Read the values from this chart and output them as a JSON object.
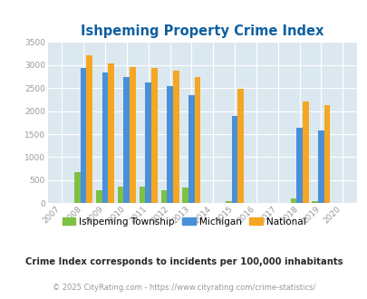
{
  "title": "Ishpeming Property Crime Index",
  "title_color": "#1060a0",
  "years": [
    2007,
    2008,
    2009,
    2010,
    2011,
    2012,
    2013,
    2014,
    2015,
    2016,
    2017,
    2018,
    2019,
    2020
  ],
  "township": [
    0,
    670,
    290,
    370,
    355,
    290,
    335,
    0,
    55,
    0,
    0,
    100,
    55,
    0
  ],
  "michigan": [
    0,
    2930,
    2840,
    2730,
    2620,
    2540,
    2350,
    0,
    1900,
    0,
    0,
    1640,
    1570,
    0
  ],
  "national": [
    0,
    3200,
    3040,
    2960,
    2930,
    2870,
    2730,
    0,
    2490,
    0,
    0,
    2210,
    2120,
    0
  ],
  "township_color": "#7dc142",
  "michigan_color": "#4a90d9",
  "national_color": "#f5a623",
  "bg_color": "#dce8f0",
  "ylim": [
    0,
    3500
  ],
  "yticks": [
    0,
    500,
    1000,
    1500,
    2000,
    2500,
    3000,
    3500
  ],
  "bar_width": 0.28,
  "legend_labels": [
    "Ishpeming Township",
    "Michigan",
    "National"
  ],
  "footnote1": "Crime Index corresponds to incidents per 100,000 inhabitants",
  "footnote2": "© 2025 CityRating.com - https://www.cityrating.com/crime-statistics/",
  "footnote1_color": "#2a2a2a",
  "footnote2_color": "#999999"
}
